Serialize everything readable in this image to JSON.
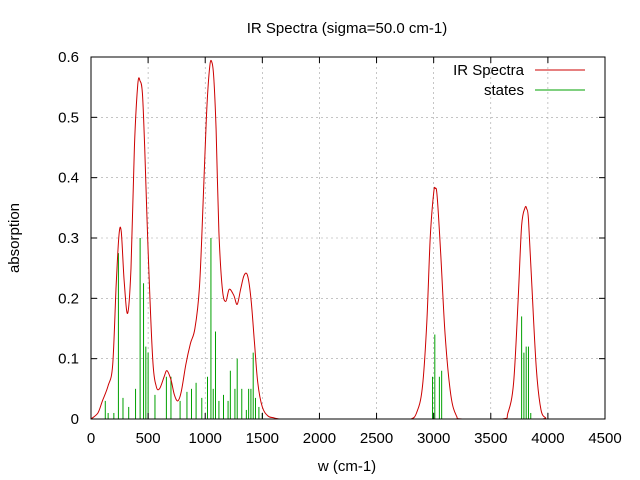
{
  "chart_data": {
    "type": "line",
    "title": "IR Spectra (sigma=50.0 cm-1)",
    "xlabel": "w (cm-1)",
    "ylabel": "absorption",
    "xlim": [
      0,
      4500
    ],
    "ylim": [
      0,
      0.6
    ],
    "x_ticks": [
      "0",
      "500",
      "1000",
      "1500",
      "2000",
      "2500",
      "3000",
      "3500",
      "4000",
      "4500"
    ],
    "y_ticks": [
      "0",
      "0.1",
      "0.2",
      "0.3",
      "0.4",
      "0.5",
      "0.6"
    ],
    "grid": true,
    "legend_position": "top-right",
    "series": [
      {
        "name": "IR Spectra",
        "kind": "line",
        "color": "#cc0000",
        "x": [
          0,
          60,
          100,
          150,
          190,
          220,
          245,
          265,
          290,
          320,
          350,
          380,
          410,
          430,
          450,
          470,
          500,
          540,
          570,
          600,
          640,
          665,
          700,
          730,
          760,
          790,
          830,
          870,
          910,
          950,
          980,
          1010,
          1040,
          1060,
          1075,
          1095,
          1120,
          1150,
          1180,
          1210,
          1250,
          1280,
          1310,
          1340,
          1370,
          1400,
          1430,
          1460,
          1500,
          1550,
          1600,
          1650,
          1700,
          2700,
          2800,
          2850,
          2900,
          2940,
          2970,
          3000,
          3015,
          3030,
          3060,
          3100,
          3150,
          3200,
          3250,
          3600,
          3650,
          3700,
          3740,
          3770,
          3800,
          3815,
          3830,
          3860,
          3900,
          3940,
          3980,
          4000,
          4500
        ],
        "y": [
          0,
          0.01,
          0.03,
          0.055,
          0.09,
          0.22,
          0.305,
          0.31,
          0.23,
          0.175,
          0.25,
          0.45,
          0.555,
          0.56,
          0.54,
          0.45,
          0.28,
          0.1,
          0.055,
          0.05,
          0.07,
          0.08,
          0.065,
          0.04,
          0.03,
          0.045,
          0.09,
          0.125,
          0.15,
          0.22,
          0.35,
          0.5,
          0.585,
          0.59,
          0.565,
          0.48,
          0.31,
          0.215,
          0.195,
          0.215,
          0.205,
          0.19,
          0.215,
          0.238,
          0.238,
          0.2,
          0.13,
          0.06,
          0.02,
          0.005,
          0.002,
          0.0,
          0.0,
          0.0,
          0.0,
          0.01,
          0.05,
          0.16,
          0.3,
          0.375,
          0.382,
          0.37,
          0.28,
          0.14,
          0.04,
          0.005,
          0.0,
          0.0,
          0.01,
          0.06,
          0.2,
          0.32,
          0.35,
          0.348,
          0.33,
          0.22,
          0.08,
          0.015,
          0.002,
          0.0,
          0.0
        ]
      },
      {
        "name": "states",
        "kind": "impulses",
        "color": "#00a000",
        "x": [
          125,
          150,
          200,
          240,
          280,
          330,
          390,
          430,
          460,
          480,
          500,
          560,
          660,
          700,
          780,
          840,
          880,
          920,
          970,
          1020,
          1050,
          1070,
          1090,
          1120,
          1160,
          1200,
          1220,
          1260,
          1280,
          1320,
          1360,
          1380,
          1400,
          1420,
          1440,
          1470,
          1500,
          2990,
          3010,
          3050,
          3070,
          3770,
          3790,
          3810,
          3830,
          3850
        ],
        "y": [
          0.03,
          0.01,
          0.01,
          0.275,
          0.035,
          0.02,
          0.05,
          0.3,
          0.225,
          0.12,
          0.11,
          0.04,
          0.07,
          0.07,
          0.03,
          0.045,
          0.05,
          0.06,
          0.035,
          0.07,
          0.3,
          0.05,
          0.145,
          0.03,
          0.04,
          0.03,
          0.08,
          0.05,
          0.1,
          0.05,
          0.015,
          0.05,
          0.05,
          0.11,
          0.035,
          0.02,
          0.01,
          0.07,
          0.14,
          0.07,
          0.08,
          0.17,
          0.11,
          0.12,
          0.12,
          0.01
        ]
      }
    ]
  }
}
